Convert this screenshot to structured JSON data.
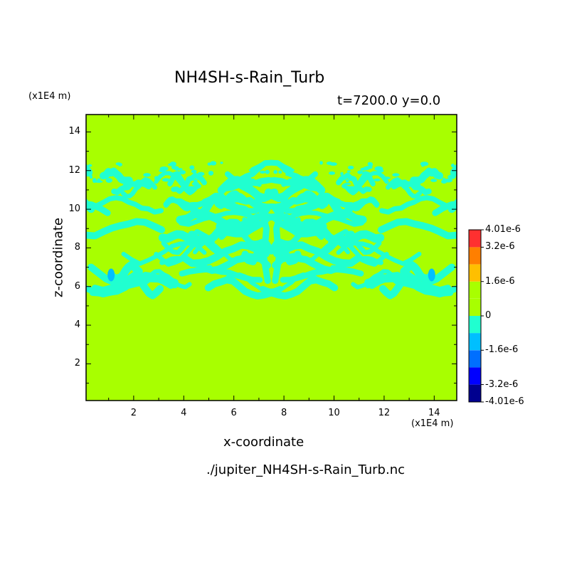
{
  "chart_data": {
    "type": "heatmap",
    "title": "NH4SH-s-Rain_Turb",
    "subtitle": "t=7200.0 y=0.0",
    "xlabel": "x-coordinate",
    "ylabel": "z-coordinate",
    "x_unit": "(x1E4 m)",
    "y_unit": "(x1E4 m)",
    "xlim": [
      0.1,
      14.9
    ],
    "ylim": [
      0.1,
      14.9
    ],
    "x_ticks": [
      2,
      4,
      6,
      8,
      10,
      12,
      14
    ],
    "y_ticks": [
      2,
      4,
      6,
      8,
      10,
      12,
      14
    ],
    "turbulent_layer_z": [
      5.5,
      12.4
    ],
    "background_value": 0,
    "colorbar": {
      "labels": [
        "4.01e-6",
        "3.2e-6",
        "1.6e-6",
        "0",
        "-1.6e-6",
        "-3.2e-6",
        "-4.01e-6"
      ],
      "label_values": [
        4.01e-06,
        3.2e-06,
        1.6e-06,
        0,
        -1.6e-06,
        -3.2e-06,
        -4.01e-06
      ],
      "bins": [
        {
          "from": -4.01e-06,
          "to": -3.2e-06,
          "color": "#00008f"
        },
        {
          "from": -3.2e-06,
          "to": -2.4e-06,
          "color": "#0000ff"
        },
        {
          "from": -2.4e-06,
          "to": -1.6e-06,
          "color": "#006fff"
        },
        {
          "from": -1.6e-06,
          "to": -8e-07,
          "color": "#00bfff"
        },
        {
          "from": -8e-07,
          "to": 0,
          "color": "#20ffd0"
        },
        {
          "from": 0,
          "to": 8e-07,
          "color": "#a8ff00"
        },
        {
          "from": 8e-07,
          "to": 1.6e-06,
          "color": "#a8ff00"
        },
        {
          "from": 1.6e-06,
          "to": 2.4e-06,
          "color": "#ffbf00"
        },
        {
          "from": 2.4e-06,
          "to": 3.2e-06,
          "color": "#ff7f00"
        },
        {
          "from": 3.2e-06,
          "to": 4.01e-06,
          "color": "#ff3030"
        }
      ]
    },
    "colors": {
      "background_field": "#a8ff00",
      "negative_patch": "#20ffd0",
      "strong_negative_patch": "#00bfff"
    }
  },
  "source_file": "./jupiter_NH4SH-s-Rain_Turb.nc"
}
